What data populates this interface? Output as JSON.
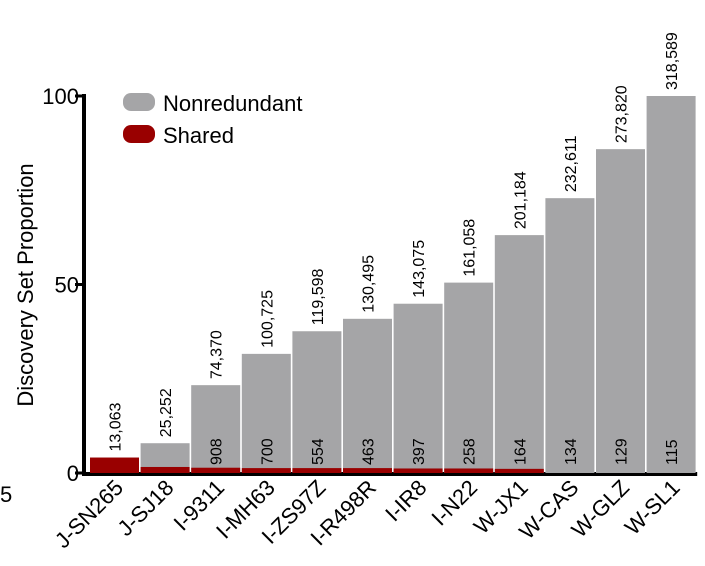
{
  "chart_data": {
    "type": "bar",
    "title": "",
    "xlabel": "",
    "ylabel": "Discovery Set Proportion",
    "ylim": [
      0,
      100
    ],
    "yticks": [
      "100",
      "50",
      "0"
    ],
    "ytick_values": [
      100,
      50,
      0
    ],
    "stray_label": "5",
    "categories": [
      "J-SN265",
      "J-SJ18",
      "I-9311",
      "I-MH63",
      "I-ZS97Z",
      "I-R498R",
      "I-IR8",
      "I-N22",
      "W-JX1",
      "W-CAS",
      "W-GLZ",
      "W-SL1"
    ],
    "series": [
      {
        "name": "Nonredundant",
        "color": "#a5a5a7",
        "values": [
          4.1,
          7.9,
          23.3,
          31.6,
          37.6,
          40.9,
          44.9,
          50.5,
          63.1,
          72.9,
          85.9,
          100.0
        ],
        "labels": [
          "",
          "",
          "908",
          "700",
          "554",
          "463",
          "397",
          "258",
          "164",
          "134",
          "129",
          "115"
        ]
      },
      {
        "name": "Shared",
        "color": "#990000",
        "values": [
          4.1,
          1.6,
          1.4,
          1.3,
          1.3,
          1.3,
          1.2,
          1.2,
          1.1,
          0,
          0,
          0
        ]
      }
    ],
    "value_labels": [
      "13,063",
      "25,252",
      "74,370",
      "100,725",
      "119,598",
      "130,495",
      "143,075",
      "161,058",
      "201,184",
      "232,611",
      "273,820",
      "318,589"
    ],
    "legend": {
      "position": "top-left",
      "entries": [
        "Nonredundant",
        "Shared"
      ]
    }
  }
}
